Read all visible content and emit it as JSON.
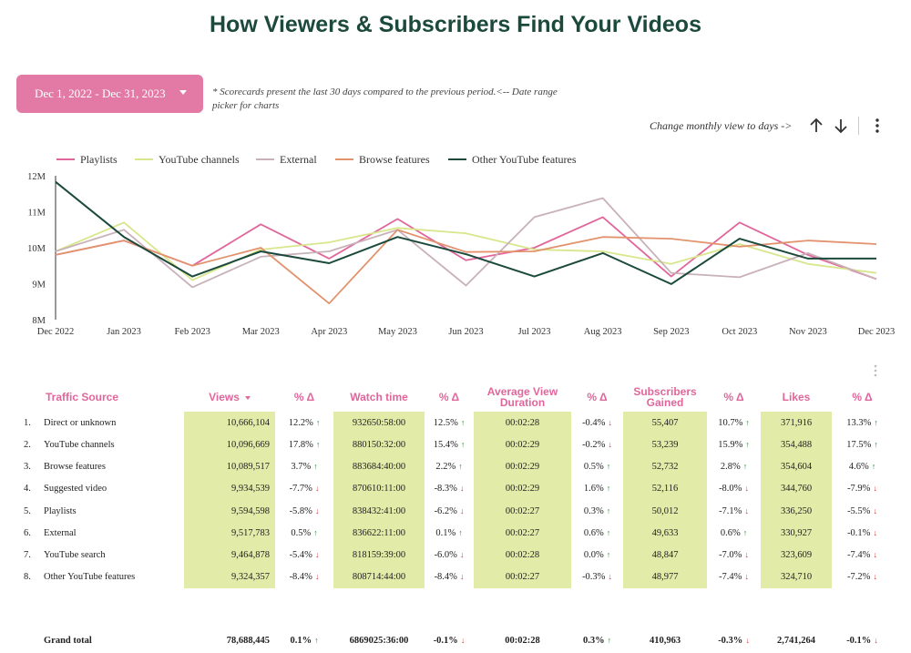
{
  "page": {
    "title": "How Viewers & Subscribers Find Your Videos"
  },
  "controls": {
    "date_range": "Dec 1, 2022 - Dec 31, 2023",
    "note": "* Scorecards present the last 30 days compared to the previous period.<-- Date range picker for charts",
    "monthly_hint": "Change monthly view to days ->"
  },
  "colors": {
    "title": "#1b4a3c",
    "accent": "#e27aa5",
    "highlight": "#e2eba8",
    "up": "#2e8b3a",
    "down": "#d03c3c"
  },
  "chart_data": {
    "type": "line",
    "categories": [
      "Dec 2022",
      "Jan 2023",
      "Feb 2023",
      "Mar 2023",
      "Apr 2023",
      "May 2023",
      "Jun 2023",
      "Jul 2023",
      "Aug 2023",
      "Sep 2023",
      "Oct 2023",
      "Nov 2023",
      "Dec 2023"
    ],
    "y_ticks": [
      "8M",
      "9M",
      "10M",
      "11M",
      "12M"
    ],
    "ylim": [
      8000000,
      12000000
    ],
    "legend_position": "top-left",
    "series": [
      {
        "name": "Playlists",
        "color": "#e0669b",
        "values": [
          9800000,
          10200000,
          9500000,
          10650000,
          9700000,
          10800000,
          9650000,
          10000000,
          10850000,
          9200000,
          10700000,
          9800000,
          9130000
        ]
      },
      {
        "name": "YouTube channels",
        "color": "#d8e68c",
        "values": [
          9900000,
          10700000,
          9100000,
          9950000,
          10150000,
          10550000,
          10400000,
          9950000,
          9900000,
          9550000,
          10100000,
          9550000,
          9300000
        ]
      },
      {
        "name": "External",
        "color": "#c9b1b9",
        "values": [
          9900000,
          10500000,
          8900000,
          9750000,
          9900000,
          10500000,
          8950000,
          10850000,
          11380000,
          9300000,
          9180000,
          9850000,
          9130000
        ]
      },
      {
        "name": "Browse features",
        "color": "#e2936e",
        "values": [
          9800000,
          10200000,
          9500000,
          10000000,
          8450000,
          10500000,
          9880000,
          9900000,
          10300000,
          10250000,
          10030000,
          10200000,
          10100000
        ]
      },
      {
        "name": "Other YouTube features",
        "color": "#1b4a3c",
        "values": [
          11830000,
          10300000,
          9200000,
          9900000,
          9570000,
          10300000,
          9820000,
          9200000,
          9850000,
          8990000,
          10250000,
          9700000,
          9700000
        ]
      }
    ]
  },
  "table": {
    "columns": [
      "Traffic Source",
      "Views",
      "% Δ",
      "Watch time",
      "% Δ",
      "Average View Duration",
      "% Δ",
      "Subscribers Gained",
      "% Δ",
      "Likes",
      "% Δ"
    ],
    "rows": [
      {
        "idx": "1.",
        "source": "Direct or unknown",
        "views": "10,666,104",
        "views_d": "12.2%",
        "views_up": true,
        "watch": "932650:58:00",
        "watch_d": "12.5%",
        "watch_up": true,
        "avd": "00:02:28",
        "avd_d": "-0.4%",
        "avd_up": false,
        "subs": "55,407",
        "subs_d": "10.7%",
        "subs_up": true,
        "likes": "371,916",
        "likes_d": "13.3%",
        "likes_up": true
      },
      {
        "idx": "2.",
        "source": "YouTube channels",
        "views": "10,096,669",
        "views_d": "17.8%",
        "views_up": true,
        "watch": "880150:32:00",
        "watch_d": "15.4%",
        "watch_up": true,
        "avd": "00:02:29",
        "avd_d": "-0.2%",
        "avd_up": false,
        "subs": "53,239",
        "subs_d": "15.9%",
        "subs_up": true,
        "likes": "354,488",
        "likes_d": "17.5%",
        "likes_up": true
      },
      {
        "idx": "3.",
        "source": "Browse features",
        "views": "10,089,517",
        "views_d": "3.7%",
        "views_up": true,
        "watch": "883684:40:00",
        "watch_d": "2.2%",
        "watch_up": true,
        "avd": "00:02:29",
        "avd_d": "0.5%",
        "avd_up": true,
        "subs": "52,732",
        "subs_d": "2.8%",
        "subs_up": true,
        "likes": "354,604",
        "likes_d": "4.6%",
        "likes_up": true
      },
      {
        "idx": "4.",
        "source": "Suggested video",
        "views": "9,934,539",
        "views_d": "-7.7%",
        "views_up": false,
        "watch": "870610:11:00",
        "watch_d": "-8.3%",
        "watch_up": false,
        "avd": "00:02:29",
        "avd_d": "1.6%",
        "avd_up": true,
        "subs": "52,116",
        "subs_d": "-8.0%",
        "subs_up": false,
        "likes": "344,760",
        "likes_d": "-7.9%",
        "likes_up": false
      },
      {
        "idx": "5.",
        "source": "Playlists",
        "views": "9,594,598",
        "views_d": "-5.8%",
        "views_up": false,
        "watch": "838432:41:00",
        "watch_d": "-6.2%",
        "watch_up": false,
        "avd": "00:02:27",
        "avd_d": "0.3%",
        "avd_up": true,
        "subs": "50,012",
        "subs_d": "-7.1%",
        "subs_up": false,
        "likes": "336,250",
        "likes_d": "-5.5%",
        "likes_up": false
      },
      {
        "idx": "6.",
        "source": "External",
        "views": "9,517,783",
        "views_d": "0.5%",
        "views_up": true,
        "watch": "836622:11:00",
        "watch_d": "0.1%",
        "watch_up": true,
        "avd": "00:02:27",
        "avd_d": "0.6%",
        "avd_up": true,
        "subs": "49,633",
        "subs_d": "0.6%",
        "subs_up": true,
        "likes": "330,927",
        "likes_d": "-0.1%",
        "likes_up": false
      },
      {
        "idx": "7.",
        "source": "YouTube search",
        "views": "9,464,878",
        "views_d": "-5.4%",
        "views_up": false,
        "watch": "818159:39:00",
        "watch_d": "-6.0%",
        "watch_up": false,
        "avd": "00:02:28",
        "avd_d": "0.0%",
        "avd_up": true,
        "subs": "48,847",
        "subs_d": "-7.0%",
        "subs_up": false,
        "likes": "323,609",
        "likes_d": "-7.4%",
        "likes_up": false
      },
      {
        "idx": "8.",
        "source": "Other YouTube features",
        "views": "9,324,357",
        "views_d": "-8.4%",
        "views_up": false,
        "watch": "808714:44:00",
        "watch_d": "-8.4%",
        "watch_up": false,
        "avd": "00:02:27",
        "avd_d": "-0.3%",
        "avd_up": false,
        "subs": "48,977",
        "subs_d": "-7.4%",
        "subs_up": false,
        "likes": "324,710",
        "likes_d": "-7.2%",
        "likes_up": false
      }
    ],
    "total": {
      "label": "Grand total",
      "views": "78,688,445",
      "views_d": "0.1%",
      "views_up": true,
      "watch": "6869025:36:00",
      "watch_d": "-0.1%",
      "watch_up": false,
      "avd": "00:02:28",
      "avd_d": "0.3%",
      "avd_up": true,
      "subs": "410,963",
      "subs_d": "-0.3%",
      "subs_up": false,
      "likes": "2,741,264",
      "likes_d": "-0.1%",
      "likes_up": false
    }
  }
}
